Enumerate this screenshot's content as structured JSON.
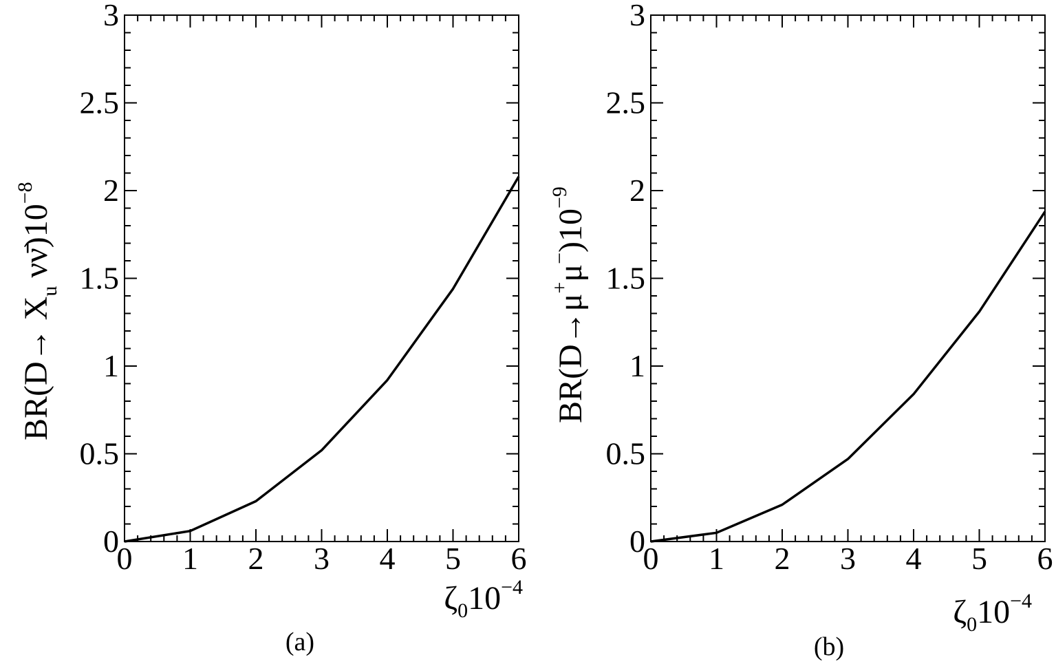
{
  "chart_data": [
    {
      "type": "line",
      "panel_label": "(a)",
      "xlabel": {
        "main": "ζ",
        "sub": "0",
        "base": "10",
        "sup": "−4"
      },
      "ylabel": {
        "lead": "BR(D→ X",
        "sub": "u",
        "mid": " νν̄)10",
        "sup": "−8"
      },
      "xlim": [
        0,
        6
      ],
      "ylim": [
        0,
        3
      ],
      "xticks": [
        "0",
        "1",
        "2",
        "3",
        "4",
        "5",
        "6"
      ],
      "yticks": [
        "0",
        "0.5",
        "1",
        "1.5",
        "2",
        "2.5",
        "3"
      ],
      "grid": false,
      "series": [
        {
          "x": [
            0,
            1,
            2,
            3,
            4,
            5,
            6
          ],
          "y": [
            0,
            0.06,
            0.23,
            0.52,
            0.92,
            1.44,
            2.08
          ]
        }
      ]
    },
    {
      "type": "line",
      "panel_label": "(b)",
      "xlabel": {
        "main": "ζ",
        "sub": "0",
        "base": "10",
        "sup": "−4"
      },
      "ylabel": {
        "lead": "BR(D→μ",
        "sup1": "+",
        "mid": "μ",
        "sup2": "−",
        "tail": ")10",
        "sup3": "−9"
      },
      "xlim": [
        0,
        6
      ],
      "ylim": [
        0,
        3
      ],
      "xticks": [
        "0",
        "1",
        "2",
        "3",
        "4",
        "5",
        "6"
      ],
      "yticks": [
        "0",
        "0.5",
        "1",
        "1.5",
        "2",
        "2.5",
        "3"
      ],
      "grid": false,
      "series": [
        {
          "x": [
            0,
            1,
            2,
            3,
            4,
            5,
            6
          ],
          "y": [
            0,
            0.05,
            0.21,
            0.47,
            0.84,
            1.31,
            1.88
          ]
        }
      ]
    }
  ]
}
